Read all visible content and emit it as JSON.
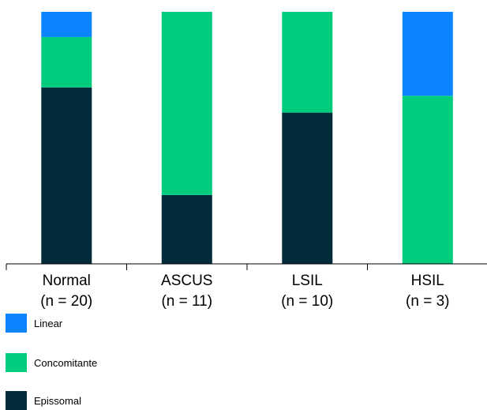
{
  "chart_data": {
    "type": "bar",
    "stacked": true,
    "percent_stacked": true,
    "categories": [
      {
        "name": "Normal",
        "n_label": "(n = 20)"
      },
      {
        "name": "ASCUS",
        "n_label": "(n = 11)"
      },
      {
        "name": "LSIL",
        "n_label": "(n = 10)"
      },
      {
        "name": "HSIL",
        "n_label": "(n = 3)"
      }
    ],
    "series": [
      {
        "name": "Epissomal",
        "color": "#022b3a",
        "values": [
          70,
          27.3,
          60,
          0
        ]
      },
      {
        "name": "Concomitante",
        "color": "#00cc7e",
        "values": [
          20,
          72.7,
          40,
          66.7
        ]
      },
      {
        "name": "Linear",
        "color": "#0a84ff",
        "values": [
          10,
          0,
          0,
          33.3
        ]
      }
    ],
    "ylim": [
      0,
      100
    ],
    "grid": false,
    "legend": {
      "placement": "bottom-left",
      "items": [
        {
          "label": "Linear",
          "color": "#0a84ff"
        },
        {
          "label": "Concomitante",
          "color": "#00cc7e"
        },
        {
          "label": "Epissomal",
          "color": "#022b3a"
        }
      ]
    }
  }
}
